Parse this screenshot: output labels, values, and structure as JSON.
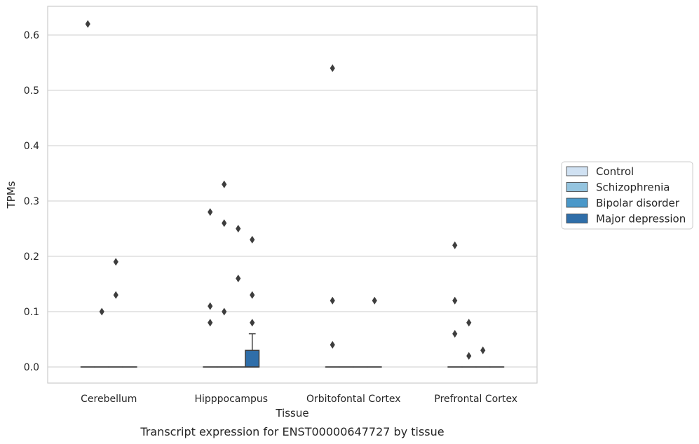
{
  "chart_data": {
    "type": "box",
    "xlabel": "Tissue",
    "ylabel": "TPMs",
    "caption": "Transcript expression for ENST00000647727 by tissue",
    "ylim": [
      -0.03,
      0.65
    ],
    "yticks": [
      "0.0",
      "0.1",
      "0.2",
      "0.3",
      "0.4",
      "0.5",
      "0.6"
    ],
    "grid": "horizontal",
    "legend_position": "right",
    "categories": [
      "Cerebellum",
      "Hipppocampus",
      "Orbitofontal Cortex",
      "Prefrontal Cortex"
    ],
    "series": [
      {
        "name": "Control",
        "color": "#d0e1f2"
      },
      {
        "name": "Schizophrenia",
        "color": "#94c4df"
      },
      {
        "name": "Bipolar disorder",
        "color": "#4a98c9"
      },
      {
        "name": "Major depression",
        "color": "#2f6ea9"
      }
    ],
    "boxes": [
      [
        {
          "q1": 0,
          "median": 0,
          "q3": 0,
          "whisker_low": 0,
          "whisker_high": 0,
          "outliers": [
            0.62
          ]
        },
        {
          "q1": 0,
          "median": 0,
          "q3": 0,
          "whisker_low": 0,
          "whisker_high": 0,
          "outliers": [
            0.1
          ]
        },
        {
          "q1": 0,
          "median": 0,
          "q3": 0,
          "whisker_low": 0,
          "whisker_high": 0,
          "outliers": [
            0.19,
            0.13
          ]
        },
        {
          "q1": 0,
          "median": 0,
          "q3": 0,
          "whisker_low": 0,
          "whisker_high": 0,
          "outliers": []
        }
      ],
      [
        {
          "q1": 0,
          "median": 0,
          "q3": 0,
          "whisker_low": 0,
          "whisker_high": 0,
          "outliers": [
            0.28,
            0.11,
            0.08
          ]
        },
        {
          "q1": 0,
          "median": 0,
          "q3": 0,
          "whisker_low": 0,
          "whisker_high": 0,
          "outliers": [
            0.33,
            0.26,
            0.1
          ]
        },
        {
          "q1": 0,
          "median": 0,
          "q3": 0,
          "whisker_low": 0,
          "whisker_high": 0,
          "outliers": [
            0.25,
            0.16
          ]
        },
        {
          "q1": 0,
          "median": 0,
          "q3": 0.03,
          "whisker_low": 0,
          "whisker_high": 0.06,
          "outliers": [
            0.23,
            0.13,
            0.08
          ]
        }
      ],
      [
        {
          "q1": 0,
          "median": 0,
          "q3": 0,
          "whisker_low": 0,
          "whisker_high": 0,
          "outliers": [
            0.54,
            0.12,
            0.04
          ]
        },
        {
          "q1": 0,
          "median": 0,
          "q3": 0,
          "whisker_low": 0,
          "whisker_high": 0,
          "outliers": []
        },
        {
          "q1": 0,
          "median": 0,
          "q3": 0,
          "whisker_low": 0,
          "whisker_high": 0,
          "outliers": []
        },
        {
          "q1": 0,
          "median": 0,
          "q3": 0,
          "whisker_low": 0,
          "whisker_high": 0,
          "outliers": [
            0.12
          ]
        }
      ],
      [
        {
          "q1": 0,
          "median": 0,
          "q3": 0,
          "whisker_low": 0,
          "whisker_high": 0,
          "outliers": [
            0.22,
            0.12,
            0.06
          ]
        },
        {
          "q1": 0,
          "median": 0,
          "q3": 0,
          "whisker_low": 0,
          "whisker_high": 0,
          "outliers": [
            0.08,
            0.02
          ]
        },
        {
          "q1": 0,
          "median": 0,
          "q3": 0,
          "whisker_low": 0,
          "whisker_high": 0,
          "outliers": [
            0.03
          ]
        },
        {
          "q1": 0,
          "median": 0,
          "q3": 0,
          "whisker_low": 0,
          "whisker_high": 0,
          "outliers": []
        }
      ]
    ]
  }
}
